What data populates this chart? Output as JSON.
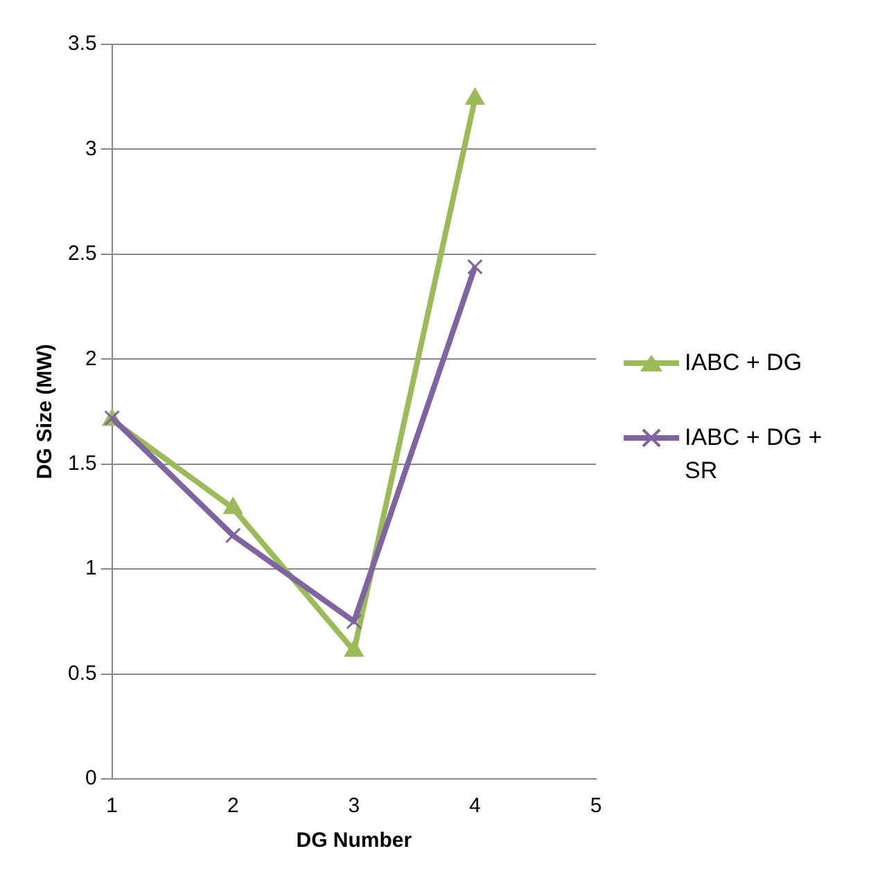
{
  "chart_data": {
    "type": "line",
    "xlabel": "DG Number",
    "ylabel": "DG Size (MW)",
    "categories": [
      "1",
      "2",
      "3",
      "4",
      "5"
    ],
    "series": [
      {
        "name": "IABC + DG",
        "color": "#9bbb59",
        "marker": "triangle",
        "values": [
          1.71,
          1.29,
          0.61,
          3.24,
          null
        ]
      },
      {
        "name": "IABC + DG + SR",
        "color": "#8064a2",
        "marker": "cross",
        "values": [
          1.72,
          1.16,
          0.75,
          2.44,
          null
        ]
      }
    ],
    "ylim": [
      0,
      3.5
    ],
    "yticks": [
      0,
      0.5,
      1,
      1.5,
      2,
      2.5,
      3,
      3.5
    ],
    "grid": "y",
    "legend": "right"
  }
}
